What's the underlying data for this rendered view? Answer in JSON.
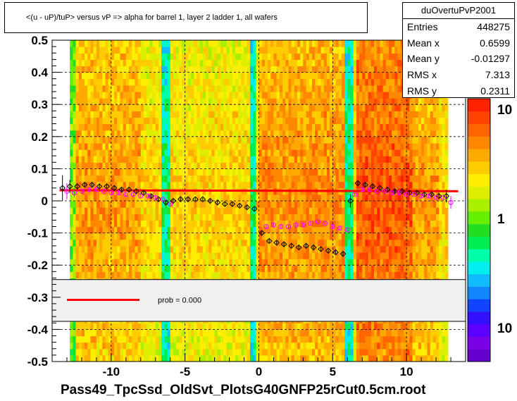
{
  "chart_data": {
    "type": "heatmap",
    "title": "<(u - uP)/tuP> versus  vP => alpha for barrel 1, layer 2 ladder 1, all wafers",
    "xlabel": "Pass49_TpcSsd_OldSvt_PlotsG40GNFP25rCut0.5cm.root",
    "ylabel": "",
    "xlim": [
      -14,
      14
    ],
    "ylim": [
      -0.5,
      0.5
    ],
    "x_ticks": [
      "-10",
      "-5",
      "0",
      "5",
      "10"
    ],
    "y_ticks": [
      "0.5",
      "0.4",
      "0.3",
      "0.2",
      "0.1",
      "0",
      "-0.1",
      "-0.2",
      "-0.3",
      "-0.4",
      "-0.5"
    ],
    "grid": true,
    "log_z": true,
    "z_ticks": [
      "10",
      "1",
      "10"
    ],
    "stats": {
      "name": "duOvertuPvP2001",
      "rows": [
        {
          "label": "Entries",
          "value": "448275"
        },
        {
          "label": "Mean x",
          "value": "0.6599"
        },
        {
          "label": "Mean y",
          "value": "-0.01297"
        },
        {
          "label": "RMS x",
          "value": "7.313"
        },
        {
          "label": "RMS y",
          "value": "0.2311"
        }
      ]
    },
    "legend": {
      "label": "prob = 0.000",
      "color": "#ff0000"
    },
    "fit_line": {
      "x": [
        -13.5,
        13.5
      ],
      "y": [
        0.033,
        0.03
      ],
      "color": "#ff0000"
    },
    "series": [
      {
        "marker": "diamond-open",
        "color": "#000000",
        "x": [
          -13.3,
          -12.8,
          -12.3,
          -11.8,
          -11.3,
          -10.8,
          -10.3,
          -9.8,
          -9.3,
          -8.8,
          -8.3,
          -7.8,
          -7.3,
          -6.8,
          -6.3,
          -5.8,
          -5.3,
          -4.8,
          -4.3,
          -3.8,
          -3.3,
          -2.8,
          -2.3,
          -1.8,
          -1.3,
          -0.8,
          -0.3,
          0.2,
          0.7,
          1.2,
          1.7,
          2.2,
          2.7,
          3.2,
          3.7,
          4.2,
          4.7,
          5.2,
          5.7,
          6.2,
          6.7,
          7.2,
          7.7,
          8.2,
          8.7,
          9.2,
          9.7,
          10.2,
          10.7,
          11.2,
          11.7,
          12.2,
          12.7
        ],
        "y": [
          0.04,
          0.045,
          0.045,
          0.05,
          0.05,
          0.045,
          0.045,
          0.04,
          0.035,
          0.035,
          0.03,
          0.025,
          0.015,
          0.005,
          -0.005,
          0.0,
          0.005,
          0.005,
          0.005,
          0.005,
          0.0,
          -0.005,
          -0.01,
          -0.01,
          -0.015,
          -0.02,
          -0.025,
          -0.1,
          -0.125,
          -0.13,
          -0.135,
          -0.14,
          -0.145,
          -0.14,
          -0.145,
          -0.15,
          -0.155,
          -0.16,
          -0.165,
          0.0,
          0.055,
          0.05,
          0.045,
          0.04,
          0.035,
          0.03,
          0.03,
          0.025,
          0.025,
          0.02,
          0.02,
          0.015,
          0.015
        ],
        "yerr": [
          0.04,
          0.02,
          0.01,
          0.005,
          0.005,
          0.005,
          0.005,
          0.005,
          0.005,
          0.005,
          0.005,
          0.005,
          0.005,
          0.005,
          0.005,
          0.005,
          0.005,
          0.005,
          0.005,
          0.005,
          0.005,
          0.005,
          0.005,
          0.005,
          0.005,
          0.005,
          0.005,
          0.005,
          0.005,
          0.005,
          0.005,
          0.005,
          0.005,
          0.005,
          0.005,
          0.005,
          0.005,
          0.005,
          0.005,
          0.02,
          0.005,
          0.005,
          0.005,
          0.005,
          0.005,
          0.005,
          0.005,
          0.005,
          0.005,
          0.005,
          0.005,
          0.01,
          0.02
        ]
      },
      {
        "marker": "circle-open",
        "color": "#ff00ff",
        "x": [
          -13.0,
          -12.5,
          -12.0,
          -11.5,
          -11.0,
          -10.5,
          -10.0,
          -9.5,
          -9.0,
          -8.5,
          -8.0,
          -7.5,
          -7.0,
          -6.5,
          -6.0,
          0.5,
          1.0,
          1.5,
          2.0,
          2.5,
          3.0,
          3.5,
          4.0,
          4.5,
          5.0,
          5.5,
          6.0,
          6.5,
          7.0,
          7.5,
          8.0,
          8.5,
          9.0,
          9.5,
          10.0,
          10.5,
          11.0,
          11.5,
          12.0,
          12.5,
          13.0
        ],
        "y": [
          0.03,
          0.025,
          0.03,
          0.035,
          0.035,
          0.03,
          0.025,
          0.025,
          0.02,
          0.02,
          0.015,
          0.015,
          0.01,
          0.005,
          -0.01,
          -0.08,
          -0.075,
          -0.08,
          -0.08,
          -0.075,
          -0.075,
          -0.07,
          -0.065,
          -0.07,
          -0.08,
          -0.085,
          -0.09,
          0.02,
          0.035,
          0.035,
          0.03,
          0.03,
          0.025,
          0.025,
          0.02,
          0.02,
          0.015,
          0.015,
          0.01,
          0.01,
          -0.005
        ],
        "yerr": [
          0.025,
          0.015,
          0.005,
          0.005,
          0.005,
          0.005,
          0.005,
          0.005,
          0.005,
          0.005,
          0.005,
          0.005,
          0.005,
          0.005,
          0.005,
          0.005,
          0.005,
          0.005,
          0.005,
          0.005,
          0.005,
          0.005,
          0.005,
          0.005,
          0.005,
          0.005,
          0.005,
          0.005,
          0.005,
          0.005,
          0.005,
          0.005,
          0.005,
          0.005,
          0.005,
          0.005,
          0.005,
          0.005,
          0.005,
          0.01,
          0.02
        ]
      }
    ]
  }
}
